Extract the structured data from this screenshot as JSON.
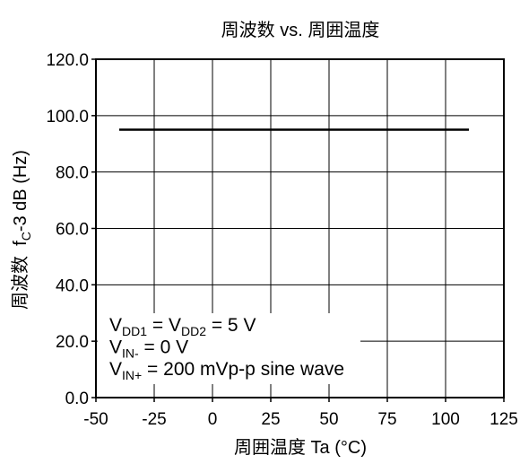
{
  "chart_data": {
    "type": "line",
    "title": "周波数 vs. 周囲温度",
    "xlabel": "周囲温度 Ta (°C)",
    "ylabel": [
      {
        "text": "周波数  f"
      },
      {
        "text": "C",
        "sub": true
      },
      {
        "text": "-3 dB (Hz)"
      }
    ],
    "xlim": [
      -50,
      125
    ],
    "ylim": [
      0,
      120
    ],
    "xticks": [
      "-50",
      "-25",
      "0",
      "25",
      "50",
      "75",
      "100",
      "125"
    ],
    "yticks": [
      "0.0",
      "20.0",
      "40.0",
      "60.0",
      "80.0",
      "100.0",
      "120.0"
    ],
    "grid": true,
    "series": [
      {
        "x": [
          -40,
          110
        ],
        "y": [
          95,
          95
        ],
        "color": "#000000"
      }
    ],
    "annotation_lines": [
      [
        {
          "text": "V"
        },
        {
          "text": "DD1",
          "sub": true
        },
        {
          "text": " = V"
        },
        {
          "text": "DD2",
          "sub": true
        },
        {
          "text": " = 5 V"
        }
      ],
      [
        {
          "text": "V"
        },
        {
          "text": "IN-",
          "sub": true
        },
        {
          "text": " = 0 V"
        }
      ],
      [
        {
          "text": "V"
        },
        {
          "text": "IN+",
          "sub": true
        },
        {
          "text": " = 200 mVp-p sine wave"
        }
      ]
    ]
  }
}
